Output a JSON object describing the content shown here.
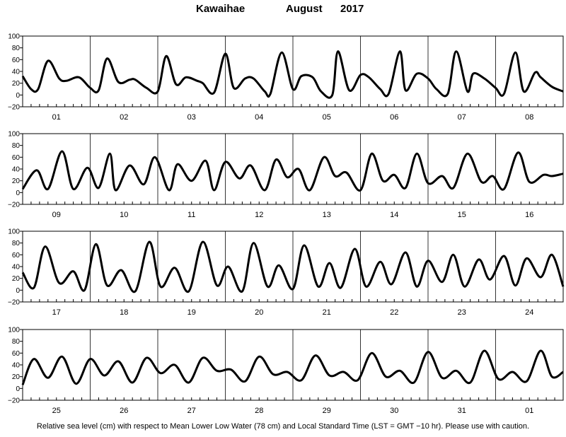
{
  "title": {
    "station": "Kawaihae",
    "month": "August",
    "year": "2017"
  },
  "footer": "Relative sea level (cm) with respect to Mean Lower Low Water (78 cm) and Local Standard Time (LST = GMT −10 hr). Please use with caution.",
  "chart_data": {
    "type": "line",
    "title": "Kawaihae   August   2017",
    "ylabel": "Relative sea level (cm)",
    "ylim": [
      -20,
      100
    ],
    "yticks": [
      -20,
      0,
      20,
      40,
      60,
      80,
      100
    ],
    "x_units": "hours (LST) from 2017-08-01 00:00",
    "grid": false,
    "panels": [
      {
        "days": [
          "01",
          "02",
          "03",
          "04",
          "05",
          "06",
          "07",
          "08"
        ],
        "x_start": 0,
        "x_end": 192,
        "series": [
          {
            "color": "#000000",
            "x": [
              0,
              3,
              5.5,
              9,
              13,
              15.5,
              20,
              24,
              27,
              30,
              34,
              38,
              40,
              44,
              48,
              51,
              54.5,
              58,
              62,
              64,
              68,
              72,
              75,
              79,
              82,
              86,
              88,
              92,
              96,
              99,
              103,
              106,
              110,
              112,
              116,
              120,
              123,
              127,
              130,
              134,
              136,
              140,
              144,
              147,
              151,
              154,
              158,
              160,
              164,
              168,
              171,
              175,
              178,
              182,
              184,
              188,
              192
            ],
            "y": [
              32,
              10,
              10,
              58,
              28,
              24,
              30,
              12,
              8,
              62,
              22,
              26,
              26,
              12,
              6,
              66,
              18,
              30,
              24,
              20,
              4,
              70,
              12,
              28,
              28,
              6,
              2,
              72,
              10,
              32,
              30,
              6,
              0,
              74,
              8,
              34,
              30,
              10,
              2,
              74,
              8,
              36,
              28,
              10,
              2,
              74,
              6,
              36,
              28,
              12,
              2,
              72,
              6,
              38,
              30,
              14,
              6
            ]
          }
        ]
      },
      {
        "days": [
          "09",
          "10",
          "11",
          "12",
          "13",
          "14",
          "15",
          "16"
        ],
        "x_start": 192,
        "x_end": 384,
        "series": [
          {
            "color": "#000000",
            "x": [
              192,
              197,
              201,
              206,
              210,
              215,
              219,
              223,
              225,
              230,
              235,
              239,
              244,
              247,
              252,
              257,
              260,
              264,
              269,
              273,
              278,
              282,
              286,
              290,
              294,
              299,
              303,
              307,
              312,
              316,
              320,
              324,
              328,
              332,
              336,
              341,
              345,
              350,
              355,
              359,
              363,
              368,
              372,
              377,
              380,
              384
            ],
            "y": [
              6,
              38,
              6,
              70,
              6,
              42,
              8,
              66,
              4,
              46,
              14,
              60,
              4,
              48,
              20,
              54,
              4,
              52,
              24,
              46,
              4,
              56,
              26,
              40,
              4,
              60,
              28,
              34,
              4,
              66,
              20,
              30,
              8,
              66,
              16,
              28,
              8,
              66,
              18,
              28,
              6,
              68,
              18,
              30,
              28,
              32
            ]
          }
        ]
      },
      {
        "days": [
          "17",
          "18",
          "19",
          "20",
          "21",
          "22",
          "23",
          "24"
        ],
        "x_start": 384,
        "x_end": 576,
        "series": [
          {
            "color": "#000000",
            "x": [
              384,
              388,
              392,
              397,
              402,
              406,
              410,
              414,
              419,
              424,
              429,
              433,
              438,
              443,
              448,
              453,
              457,
              462,
              466,
              471,
              475,
              480,
              484,
              489,
              493,
              497,
              502,
              506,
              511,
              515,
              520,
              524,
              528,
              533,
              537,
              541,
              546,
              550,
              555,
              559,
              563,
              568,
              572,
              576
            ],
            "y": [
              30,
              4,
              74,
              12,
              32,
              0,
              78,
              8,
              34,
              -2,
              82,
              6,
              38,
              -2,
              82,
              8,
              40,
              -2,
              80,
              6,
              42,
              2,
              76,
              6,
              46,
              4,
              70,
              6,
              48,
              10,
              64,
              6,
              50,
              14,
              60,
              6,
              52,
              18,
              58,
              8,
              54,
              22,
              60,
              6
            ]
          }
        ]
      },
      {
        "days": [
          "25",
          "26",
          "27",
          "28",
          "29",
          "30",
          "31",
          "01"
        ],
        "x_start": 576,
        "x_end": 768,
        "series": [
          {
            "color": "#000000",
            "x": [
              576,
              580,
              585,
              590,
              595,
              600,
              605,
              610,
              615,
              620,
              625,
              630,
              635,
              640,
              645,
              650,
              655,
              660,
              665,
              670,
              675,
              680,
              685,
              690,
              695,
              700,
              705,
              710,
              715,
              720,
              725,
              730,
              735,
              740,
              745,
              750,
              755,
              760,
              764,
              768
            ],
            "y": [
              6,
              50,
              18,
              54,
              8,
              50,
              22,
              46,
              10,
              52,
              26,
              40,
              10,
              52,
              30,
              32,
              12,
              54,
              24,
              28,
              14,
              56,
              22,
              28,
              14,
              60,
              20,
              30,
              10,
              62,
              18,
              30,
              10,
              64,
              16,
              28,
              12,
              64,
              20,
              28
            ]
          }
        ]
      }
    ]
  }
}
